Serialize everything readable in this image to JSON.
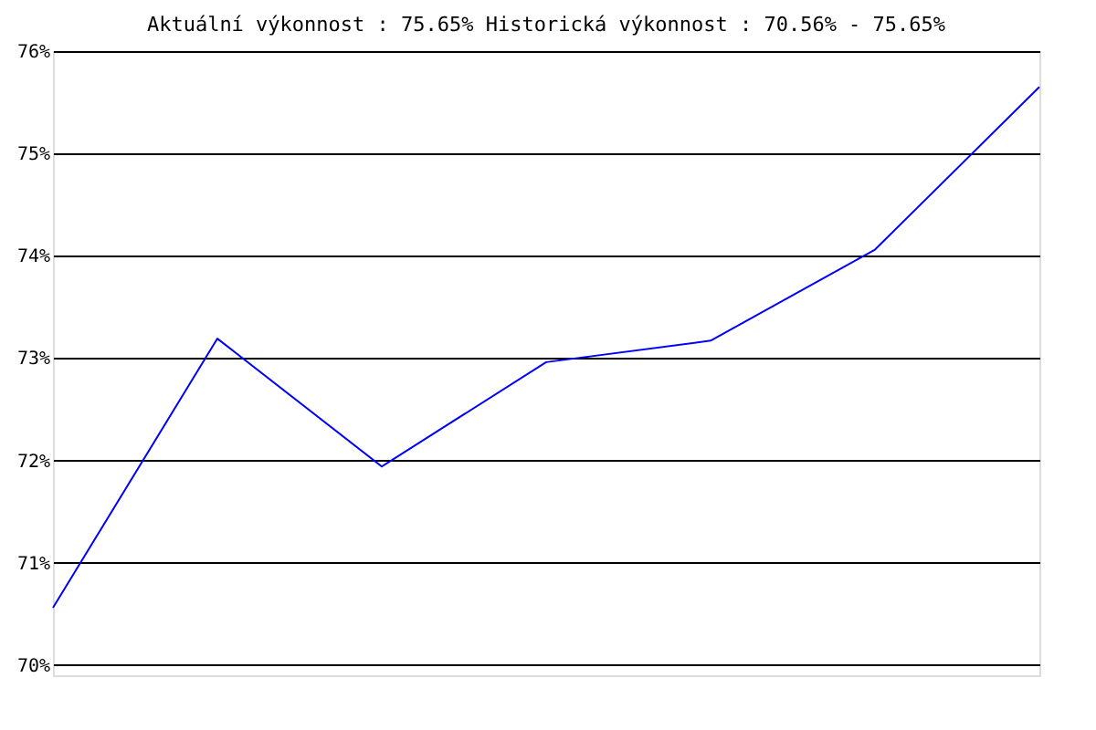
{
  "chart_data": {
    "type": "line",
    "title": "Aktuální výkonnost : 75.65%  Historická výkonnost : 70.56% - 75.65%",
    "categories": [
      null,
      null,
      null,
      null,
      null,
      null,
      null
    ],
    "series": [
      {
        "color": "#0000ff",
        "values": [
          70.56,
          73.19,
          71.94,
          72.96,
          73.17,
          74.06,
          75.65
        ]
      }
    ],
    "ylim": [
      69.9,
      76
    ],
    "yticks": [
      {
        "value": 70,
        "label": "70%"
      },
      {
        "value": 71,
        "label": "71%"
      },
      {
        "value": 72,
        "label": "72%"
      },
      {
        "value": 73,
        "label": "73%"
      },
      {
        "value": 74,
        "label": "74%"
      },
      {
        "value": 75,
        "label": "75%"
      },
      {
        "value": 76,
        "label": "76%"
      }
    ],
    "grid": "y",
    "tick_labels": "y",
    "marker": "none",
    "line_style": "solid"
  }
}
